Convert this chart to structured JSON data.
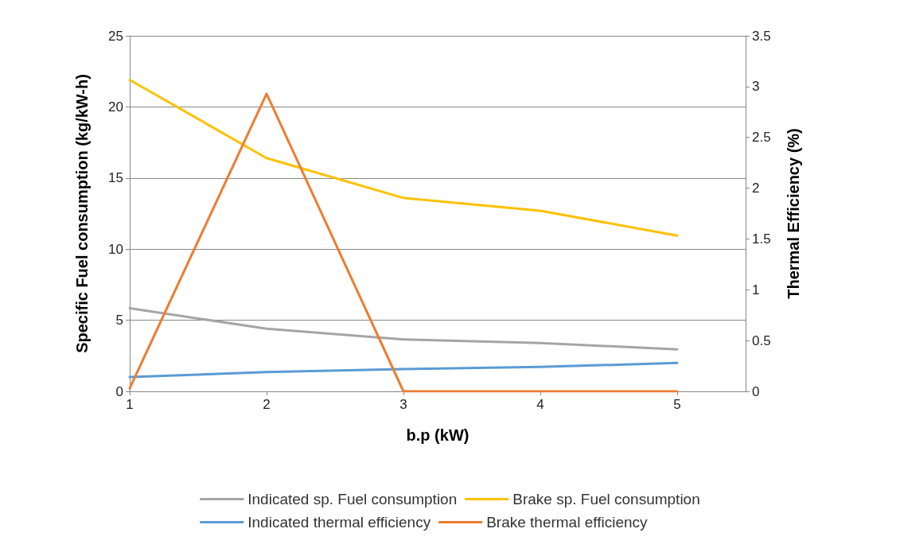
{
  "chart_data": {
    "type": "line",
    "xlabel": "b.p (kW)",
    "ylabel": "Specific Fuel consumption (kg/kW-h)",
    "y2label": "Thermal Efficiency (%)",
    "x": [
      1,
      2,
      3,
      4,
      5
    ],
    "series": [
      {
        "name": "Indicated sp. Fuel consumption",
        "color": "#a5a5a5",
        "values": [
          5.85,
          4.4,
          3.65,
          3.4,
          2.95
        ]
      },
      {
        "name": "Brake sp. Fuel consumption",
        "color": "#ffc000",
        "values": [
          21.9,
          16.4,
          13.6,
          12.7,
          10.95
        ]
      },
      {
        "name": "Indicated thermal efficiency",
        "color": "#5b9bd5",
        "axis": "y2",
        "values": [
          0.14,
          0.19,
          0.22,
          0.24,
          0.28
        ]
      },
      {
        "name": "Brake thermal efficiency",
        "color": "#ed7d31",
        "axis": "y2",
        "values": [
          0.03,
          2.93,
          0,
          0,
          0
        ]
      }
    ],
    "xlim": [
      1,
      5.5
    ],
    "xticks": [
      1,
      2,
      3,
      4,
      5
    ],
    "ylim": [
      0,
      25
    ],
    "yticks": [
      0,
      5,
      10,
      15,
      20,
      25
    ],
    "y2lim": [
      0,
      3.5
    ],
    "y2ticks": [
      0,
      0.5,
      1,
      1.5,
      2,
      2.5,
      3,
      3.5
    ],
    "grid": "y",
    "legend": "bottom",
    "marker": "none",
    "line_style": "solid"
  }
}
